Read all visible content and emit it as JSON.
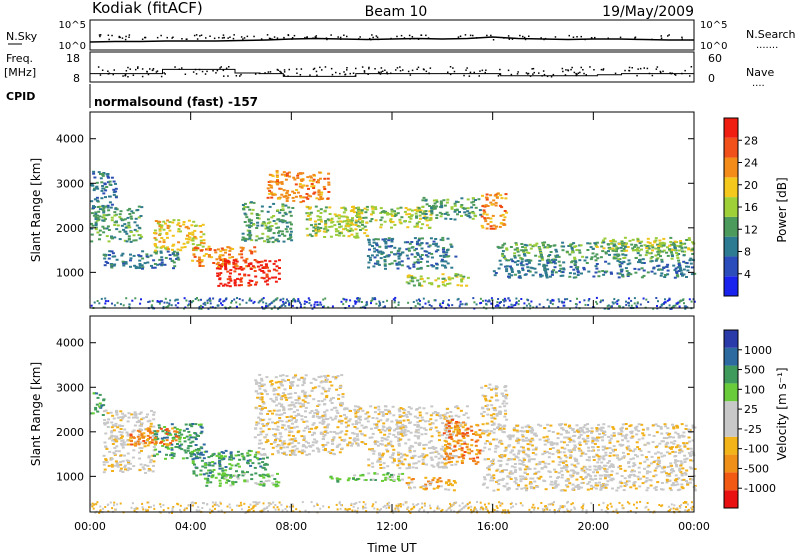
{
  "header": {
    "station": "Kodiak (fitACF)",
    "beam": "Beam 10",
    "date": "19/May/2009"
  },
  "top_panels": {
    "nsky_label": "N.Sky",
    "nsky_ticks": [
      "10^5",
      "10^0"
    ],
    "nsearch_label": "N.Search",
    "nsearch_ticks": [
      "10^5",
      "10^0"
    ],
    "freq_label_1": "Freq.",
    "freq_label_2": "[MHz]",
    "freq_ticks": [
      "18",
      "8"
    ],
    "nave_label": "Nave",
    "nave_ticks": [
      "60",
      "0"
    ],
    "cpid_label": "CPID",
    "cpid_value": "normalsound (fast) -157"
  },
  "colors": {
    "power_scale": [
      "#1a22e6",
      "#2c4fb2",
      "#2f7a8e",
      "#4c9a5b",
      "#9acc3a",
      "#f0c21a",
      "#f08a1a",
      "#f04a12",
      "#f01a0f"
    ],
    "velocity_scale": [
      "#ee1111",
      "#f24a14",
      "#f0821a",
      "#f2b018",
      "#c8c8c8",
      "#c8c8c8",
      "#66cc33",
      "#3f9b5c",
      "#2f6a9e",
      "#2a3a9e"
    ],
    "velocity_colorbar": [
      "#e81010",
      "#f25a14",
      "#f09018",
      "#f2b418",
      "#c8c8c8",
      "#c8c8c8",
      "#6acc3a",
      "#3f9b5c",
      "#2c6aa0",
      "#2a3aa8"
    ],
    "power_colorbar": [
      "#1a22ee",
      "#2a4dbb",
      "#2d7a93",
      "#4c9b5d",
      "#9fd038",
      "#f4c81c",
      "#f48c1a",
      "#f2501a",
      "#f01e10"
    ]
  },
  "chart_data": {
    "type": "heatmap",
    "xlabel": "Time UT",
    "x_ticks": [
      "00:00",
      "04:00",
      "08:00",
      "12:00",
      "16:00",
      "20:00",
      "00:00"
    ],
    "x_range": [
      0,
      24
    ],
    "ylabel": "Slant Range [km]",
    "y_ticks": [
      1000,
      2000,
      3000,
      4000
    ],
    "y_range": [
      200,
      4600
    ],
    "panels": [
      {
        "name": "power",
        "colorbar_label": "Power [dB]",
        "colorbar_ticks": [
          "28",
          "24",
          "20",
          "16",
          "12",
          "8",
          "4"
        ],
        "colorbar_range": [
          0,
          32
        ],
        "regions": [
          {
            "t0": 0.0,
            "t1": 1.0,
            "r0": 2400,
            "r1": 3300,
            "level": 2
          },
          {
            "t0": 0.0,
            "t1": 2.0,
            "r0": 1700,
            "r1": 2500,
            "level": 3
          },
          {
            "t0": 0.5,
            "t1": 3.5,
            "r0": 1100,
            "r1": 1500,
            "level": 2
          },
          {
            "t0": 2.5,
            "t1": 4.5,
            "r0": 1500,
            "r1": 2200,
            "level": 5
          },
          {
            "t0": 4.0,
            "t1": 6.5,
            "r0": 1100,
            "r1": 1600,
            "level": 6
          },
          {
            "t0": 5.0,
            "t1": 7.5,
            "r0": 700,
            "r1": 1300,
            "level": 8
          },
          {
            "t0": 6.0,
            "t1": 8.0,
            "r0": 1700,
            "r1": 2600,
            "level": 3
          },
          {
            "t0": 7.0,
            "t1": 9.5,
            "r0": 2600,
            "r1": 3300,
            "level": 6
          },
          {
            "t0": 8.5,
            "t1": 11.0,
            "r0": 1800,
            "r1": 2500,
            "level": 4
          },
          {
            "t0": 10.0,
            "t1": 13.5,
            "r0": 2000,
            "r1": 2500,
            "level": 4
          },
          {
            "t0": 11.0,
            "t1": 14.5,
            "r0": 1100,
            "r1": 1800,
            "level": 2
          },
          {
            "t0": 13.0,
            "t1": 15.5,
            "r0": 2200,
            "r1": 2700,
            "level": 3
          },
          {
            "t0": 12.5,
            "t1": 15.0,
            "r0": 700,
            "r1": 1000,
            "level": 4
          },
          {
            "t0": 15.5,
            "t1": 16.5,
            "r0": 2000,
            "r1": 2800,
            "level": 6
          },
          {
            "t0": 16.0,
            "t1": 24.0,
            "r0": 1300,
            "r1": 1700,
            "level": 3
          },
          {
            "t0": 16.0,
            "t1": 24.0,
            "r0": 900,
            "r1": 1300,
            "level": 2
          },
          {
            "t0": 20.0,
            "t1": 24.0,
            "r0": 1500,
            "r1": 1800,
            "level": 4
          }
        ]
      },
      {
        "name": "velocity",
        "colorbar_label": "Velocity [m s⁻¹]",
        "colorbar_ticks": [
          "1000",
          "500",
          "100",
          "25",
          "-25",
          "-100",
          "-500",
          "-1000"
        ],
        "regions": [
          {
            "t0": 0.0,
            "t1": 0.5,
            "r0": 2400,
            "r1": 2900,
            "level": 7
          },
          {
            "t0": 0.5,
            "t1": 2.5,
            "r0": 1100,
            "r1": 2500,
            "level": 4
          },
          {
            "t0": 2.5,
            "t1": 4.5,
            "r0": 1400,
            "r1": 2200,
            "level": 7
          },
          {
            "t0": 4.0,
            "t1": 7.0,
            "r0": 1000,
            "r1": 1600,
            "level": 7
          },
          {
            "t0": 4.5,
            "t1": 7.5,
            "r0": 800,
            "r1": 1100,
            "level": 6
          },
          {
            "t0": 1.5,
            "t1": 3.5,
            "r0": 1700,
            "r1": 2100,
            "level": 2
          },
          {
            "t0": 6.5,
            "t1": 10.0,
            "r0": 1500,
            "r1": 3300,
            "level": 4
          },
          {
            "t0": 9.5,
            "t1": 12.5,
            "r0": 900,
            "r1": 1100,
            "level": 6
          },
          {
            "t0": 10.0,
            "t1": 15.0,
            "r0": 1700,
            "r1": 2600,
            "level": 4
          },
          {
            "t0": 11.0,
            "t1": 14.5,
            "r0": 1200,
            "r1": 1700,
            "level": 4
          },
          {
            "t0": 12.5,
            "t1": 14.5,
            "r0": 700,
            "r1": 1000,
            "level": 3
          },
          {
            "t0": 14.0,
            "t1": 15.5,
            "r0": 1300,
            "r1": 2300,
            "level": 2
          },
          {
            "t0": 15.5,
            "t1": 24.0,
            "r0": 700,
            "r1": 2200,
            "level": 4
          },
          {
            "t0": 15.5,
            "t1": 16.5,
            "r0": 2000,
            "r1": 3100,
            "level": 4
          }
        ]
      }
    ],
    "nsky": [
      1.2,
      1.3,
      1.3,
      1.4,
      1.4,
      1.4,
      1.5,
      1.6,
      1.8,
      1.9,
      1.8,
      1.7,
      1.8,
      1.9,
      1.8,
      1.9,
      2.2,
      1.9,
      1.8,
      1.7,
      1.8,
      1.8,
      1.7,
      1.6,
      1.6
    ],
    "freq": [
      11.0,
      11.0,
      11.0,
      12.5,
      12.5,
      12.5,
      11.2,
      11.0,
      10.0,
      10.0,
      10.0,
      11.0,
      11.0,
      11.0,
      11.0,
      11.0,
      11.0,
      10.2,
      10.2,
      10.2,
      10.2,
      10.6,
      11.0,
      11.0,
      11.0
    ]
  }
}
